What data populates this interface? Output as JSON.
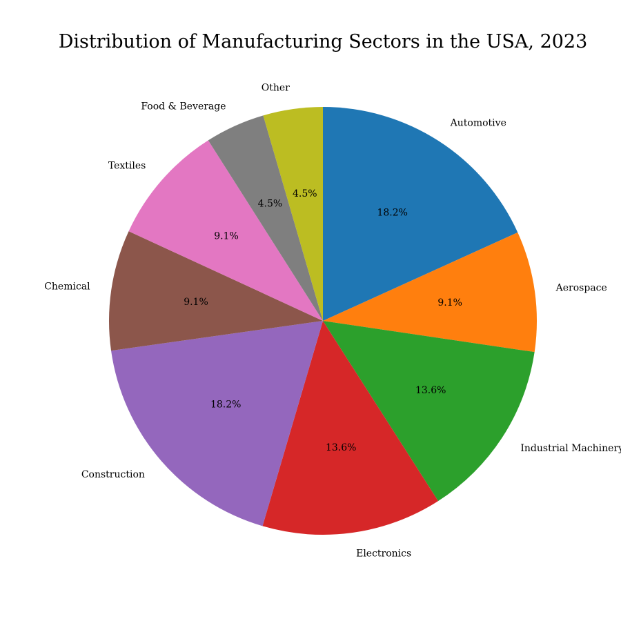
{
  "chart_data": {
    "type": "pie",
    "title": "Distribution of Manufacturing Sectors in the USA, 2023",
    "start_angle": "12 o'clock",
    "direction": "clockwise",
    "slices": [
      {
        "label": "Automotive",
        "percent": 18.2,
        "percent_label": "18.2%",
        "color": "#1f77b4"
      },
      {
        "label": "Aerospace",
        "percent": 9.1,
        "percent_label": "9.1%",
        "color": "#ff7f0e"
      },
      {
        "label": "Industrial Machinery",
        "percent": 13.6,
        "percent_label": "13.6%",
        "color": "#2ca02c"
      },
      {
        "label": "Electronics",
        "percent": 13.6,
        "percent_label": "13.6%",
        "color": "#d62728"
      },
      {
        "label": "Construction",
        "percent": 18.2,
        "percent_label": "18.2%",
        "color": "#9467bd"
      },
      {
        "label": "Chemical",
        "percent": 9.1,
        "percent_label": "9.1%",
        "color": "#8c564b"
      },
      {
        "label": "Textiles",
        "percent": 9.1,
        "percent_label": "9.1%",
        "color": "#e377c2"
      },
      {
        "label": "Food & Beverage",
        "percent": 4.5,
        "percent_label": "4.5%",
        "color": "#7f7f7f"
      },
      {
        "label": "Other",
        "percent": 4.5,
        "percent_label": "4.5%",
        "color": "#bcbd22"
      }
    ]
  }
}
